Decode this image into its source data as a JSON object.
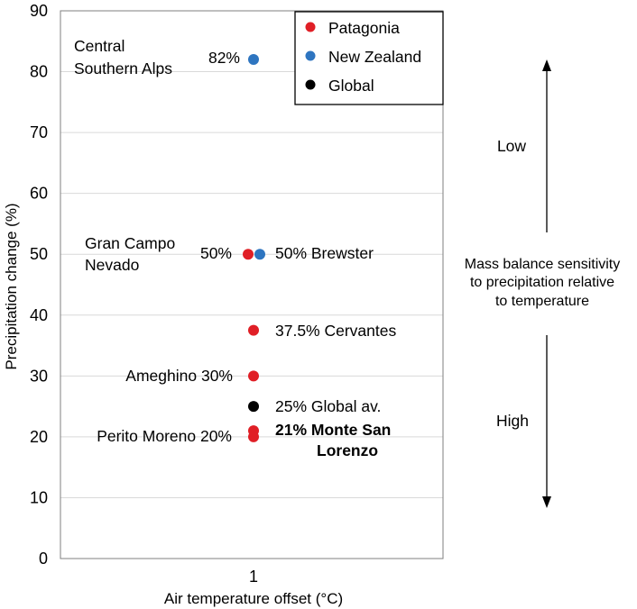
{
  "chart_data": {
    "type": "scatter",
    "xlabel": "Air temperature offset (°C)",
    "ylabel": "Precipitation change (%)",
    "ylim": [
      0,
      90
    ],
    "yticks": [
      0,
      10,
      20,
      30,
      40,
      50,
      60,
      70,
      80,
      90
    ],
    "xtick_label": "1",
    "grid": true,
    "legend": {
      "placement": "top-right",
      "entries": [
        {
          "name": "Patagonia",
          "color": "#e01f26"
        },
        {
          "name": "New Zealand",
          "color": "#2e75c0"
        },
        {
          "name": "Global",
          "color": "#000000"
        }
      ]
    },
    "points": [
      {
        "series": "New Zealand",
        "x": 1,
        "y": 82,
        "label": "82%",
        "name_lines": [
          "Central",
          "Southern Alps"
        ]
      },
      {
        "series": "Patagonia",
        "x": 1,
        "y": 50,
        "label": "50%",
        "name_lines": [
          "Gran Campo",
          "Nevado"
        ]
      },
      {
        "series": "New Zealand",
        "x": 1,
        "y": 50,
        "label": "50% Brewster",
        "name_lines": []
      },
      {
        "series": "Patagonia",
        "x": 1,
        "y": 37.5,
        "label": "37.5% Cervantes",
        "name_lines": []
      },
      {
        "series": "Patagonia",
        "x": 1,
        "y": 30,
        "label": "Ameghino 30%",
        "name_lines": []
      },
      {
        "series": "Global",
        "x": 1,
        "y": 25,
        "label": "25% Global av.",
        "name_lines": []
      },
      {
        "series": "Patagonia",
        "x": 1,
        "y": 21,
        "label": "21% Monte San",
        "label_line2": "Lorenzo",
        "bold": true,
        "name_lines": []
      },
      {
        "series": "Patagonia",
        "x": 1,
        "y": 20,
        "label": "Perito Moreno 20%",
        "name_lines": []
      }
    ],
    "annotations": {
      "low": "Low",
      "high": "High",
      "sensitivity_lines": [
        "Mass balance sensitivity",
        "to precipitation relative",
        "to temperature"
      ]
    }
  }
}
